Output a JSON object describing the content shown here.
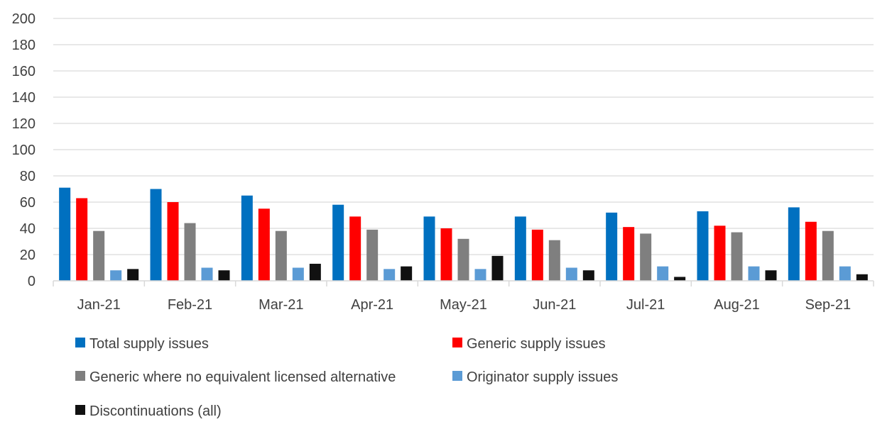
{
  "chart_data": {
    "type": "bar",
    "title": "",
    "xlabel": "",
    "ylabel": "",
    "ylim": [
      0,
      200
    ],
    "yticks": [
      0,
      20,
      40,
      60,
      80,
      100,
      120,
      140,
      160,
      180,
      200
    ],
    "grid": true,
    "legend_position": "bottom",
    "categories": [
      "Jan-21",
      "Feb-21",
      "Mar-21",
      "Apr-21",
      "May-21",
      "Jun-21",
      "Jul-21",
      "Aug-21",
      "Sep-21"
    ],
    "series": [
      {
        "name": "Total supply issues",
        "color": "#0070C0",
        "values": [
          71,
          70,
          65,
          58,
          49,
          49,
          52,
          53,
          56
        ]
      },
      {
        "name": "Generic supply issues",
        "color": "#FF0000",
        "values": [
          63,
          60,
          55,
          49,
          40,
          39,
          41,
          42,
          45
        ]
      },
      {
        "name": "Generic where no equivalent licensed alternative",
        "color": "#7F7F7F",
        "values": [
          38,
          44,
          38,
          39,
          32,
          31,
          36,
          37,
          38
        ]
      },
      {
        "name": "Originator supply issues",
        "color": "#5B9BD5",
        "values": [
          8,
          10,
          10,
          9,
          9,
          10,
          11,
          11,
          11
        ]
      },
      {
        "name": "Discontinuations (all)",
        "color": "#111111",
        "values": [
          9,
          8,
          13,
          11,
          19,
          8,
          3,
          8,
          5
        ]
      }
    ]
  }
}
